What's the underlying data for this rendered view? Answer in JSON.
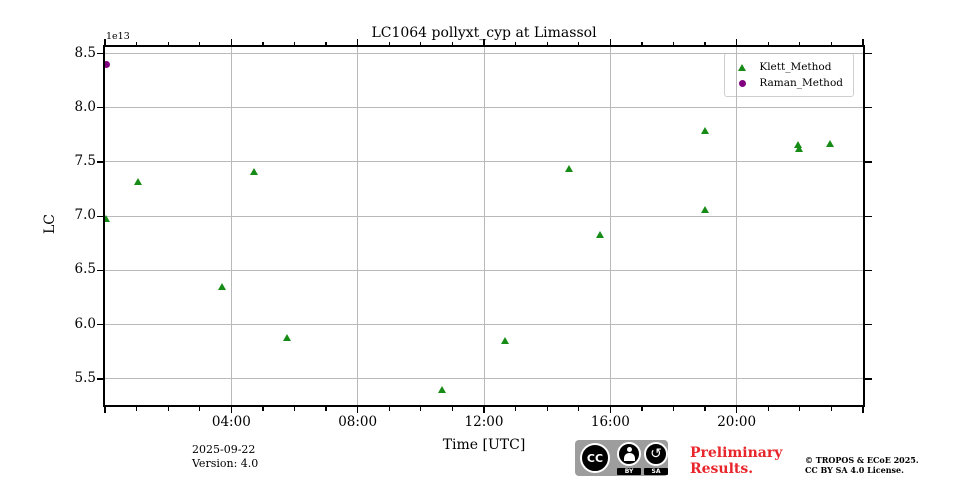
{
  "figure": {
    "title": "LC1064 pollyxt_cyp at Limassol",
    "offset_text": "1e13"
  },
  "chart_data": {
    "type": "scatter",
    "title": "LC1064 pollyxt_cyp at Limassol",
    "xlabel": "Time [UTC]",
    "ylabel": "LC",
    "y_offset_label": "1e13",
    "grid": true,
    "x_axis": {
      "unit": "hours UTC",
      "range": [
        0,
        24
      ],
      "major_ticks": [
        {
          "t": 4,
          "label": "04:00"
        },
        {
          "t": 8,
          "label": "08:00"
        },
        {
          "t": 12,
          "label": "12:00"
        },
        {
          "t": 16,
          "label": "16:00"
        },
        {
          "t": 20,
          "label": "20:00"
        }
      ],
      "minor_tick_every_hours": 1
    },
    "y_axis": {
      "range": [
        5.26,
        8.56
      ],
      "scale_note": "values are x1e13",
      "ticks": [
        {
          "v": 8.5,
          "label": "8.5"
        },
        {
          "v": 8.0,
          "label": "8.0"
        },
        {
          "v": 7.5,
          "label": "7.5"
        },
        {
          "v": 7.0,
          "label": "7.0"
        },
        {
          "v": 6.5,
          "label": "6.5"
        },
        {
          "v": 6.0,
          "label": "6.0"
        },
        {
          "v": 5.5,
          "label": "5.5"
        }
      ]
    },
    "legend": {
      "position": "upper right",
      "items": [
        {
          "label": "Klett_Method",
          "marker": "triangle",
          "color": "#168c16"
        },
        {
          "label": "Raman_Method",
          "marker": "circle",
          "color": "#800080"
        }
      ]
    },
    "series": [
      {
        "name": "Klett_Method",
        "marker": "triangle",
        "color": "#168c16",
        "points": [
          {
            "time": "00:03",
            "t": 0.05,
            "v": 6.98
          },
          {
            "time": "01:03",
            "t": 1.05,
            "v": 7.32
          },
          {
            "time": "03:43",
            "t": 3.72,
            "v": 6.35
          },
          {
            "time": "04:43",
            "t": 4.72,
            "v": 7.41
          },
          {
            "time": "05:46",
            "t": 5.77,
            "v": 5.88
          },
          {
            "time": "10:42",
            "t": 10.7,
            "v": 5.4
          },
          {
            "time": "12:41",
            "t": 12.68,
            "v": 5.85
          },
          {
            "time": "14:42",
            "t": 14.7,
            "v": 7.44
          },
          {
            "time": "15:41",
            "t": 15.68,
            "v": 6.83
          },
          {
            "time": "19:00",
            "t": 19.0,
            "v": 7.79
          },
          {
            "time": "19:01",
            "t": 19.02,
            "v": 7.06
          },
          {
            "time": "21:57",
            "t": 21.95,
            "v": 7.66
          },
          {
            "time": "22:00",
            "t": 22.0,
            "v": 7.62
          },
          {
            "time": "22:59",
            "t": 22.98,
            "v": 7.67
          }
        ]
      },
      {
        "name": "Raman_Method",
        "marker": "circle",
        "color": "#800080",
        "points": [
          {
            "time": "00:03",
            "t": 0.05,
            "v": 8.4
          }
        ]
      }
    ]
  },
  "footer": {
    "date": "2025-09-22",
    "version": "Version: 4.0",
    "cc_badge": {
      "cc": "CC",
      "by": "BY",
      "sa": "SA"
    },
    "preliminary_line1": "Preliminary",
    "preliminary_line2": "Results.",
    "preliminary_color": "#e8252a",
    "copyright_line1": "© TROPOS & ECoE 2025.",
    "copyright_line2": "CC BY SA 4.0 License."
  },
  "colors": {
    "klett_green": "#168c16",
    "raman_purple": "#800080",
    "grid_gray": "#b9b9b9",
    "spine_black": "#000000",
    "cc_badge_gray": "#9d9d9d",
    "preliminary_red": "#e8252a"
  }
}
